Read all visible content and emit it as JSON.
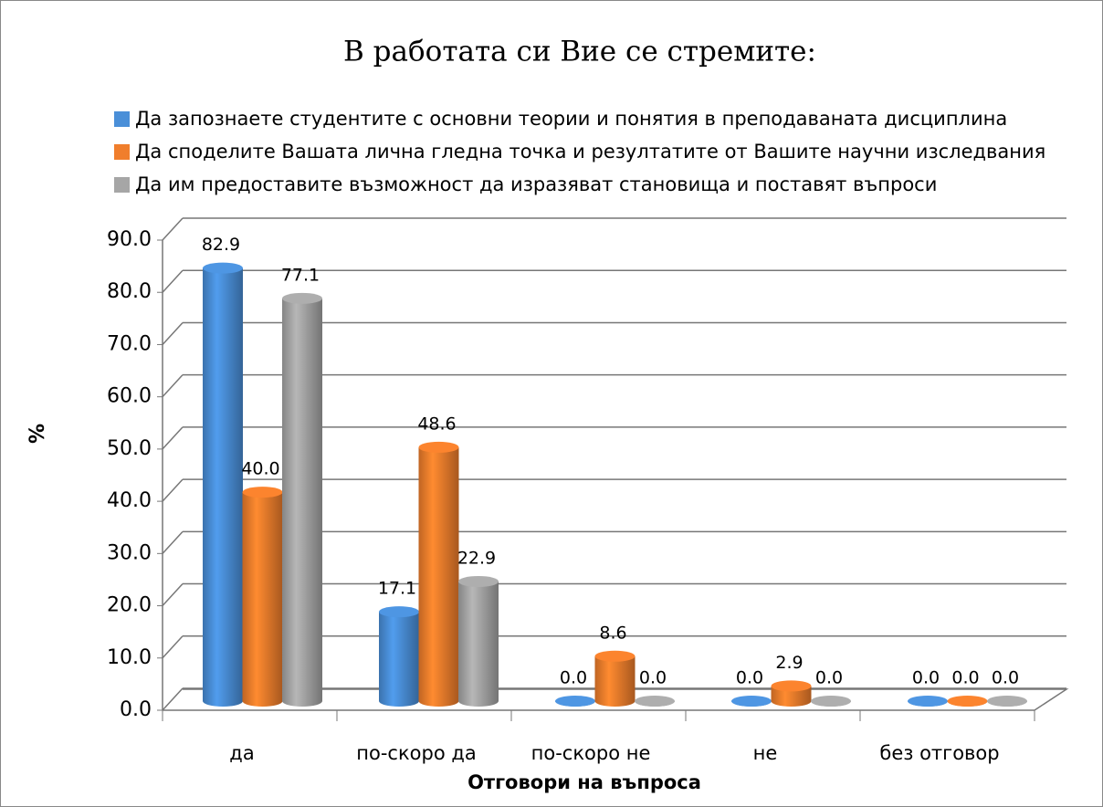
{
  "chart_data": {
    "type": "bar3d",
    "title": "В работата си Вие се стремите:",
    "xlabel": "Отговори на въпроса",
    "ylabel": "%",
    "categories": [
      "да",
      "по-скоро да",
      "по-скоро не",
      "не",
      "без отговор"
    ],
    "series": [
      {
        "name": "Да запознаете студентите с основни теории и понятия в преподаваната дисциплина",
        "color": "#4a8fd8",
        "values": [
          82.9,
          17.1,
          0,
          0,
          0
        ],
        "value_labels": [
          "82.9",
          "17.1",
          "0.0",
          "0.0",
          "0.0"
        ]
      },
      {
        "name": "Да споделите Вашата лична гледна точка и резултатите от Вашите научни изследвания",
        "color": "#f07e2c",
        "values": [
          40,
          48.6,
          8.6,
          2.9,
          0
        ],
        "value_labels": [
          "40.0",
          "48.6",
          "8.6",
          "2.9",
          "0.0"
        ]
      },
      {
        "name": "Да им предоставите възможност да изразяват становища и поставят въпроси",
        "color": "#a6a6a6",
        "values": [
          77.1,
          22.9,
          0,
          0,
          0
        ],
        "value_labels": [
          "77.1",
          "22.9",
          "0.0",
          "0.0",
          "0.0"
        ]
      }
    ],
    "ylim": [
      0,
      90
    ],
    "yticks": [
      {
        "value": 0,
        "label": "0.0"
      },
      {
        "value": 10,
        "label": "10.0"
      },
      {
        "value": 20,
        "label": "20.0"
      },
      {
        "value": 30,
        "label": "30.0"
      },
      {
        "value": 40,
        "label": "40.0"
      },
      {
        "value": 50,
        "label": "50.0"
      },
      {
        "value": 60,
        "label": "60.0"
      },
      {
        "value": 70,
        "label": "70.0"
      },
      {
        "value": 80,
        "label": "80.0"
      },
      {
        "value": 90,
        "label": "90.0"
      }
    ],
    "grid": true,
    "legend": "top"
  }
}
